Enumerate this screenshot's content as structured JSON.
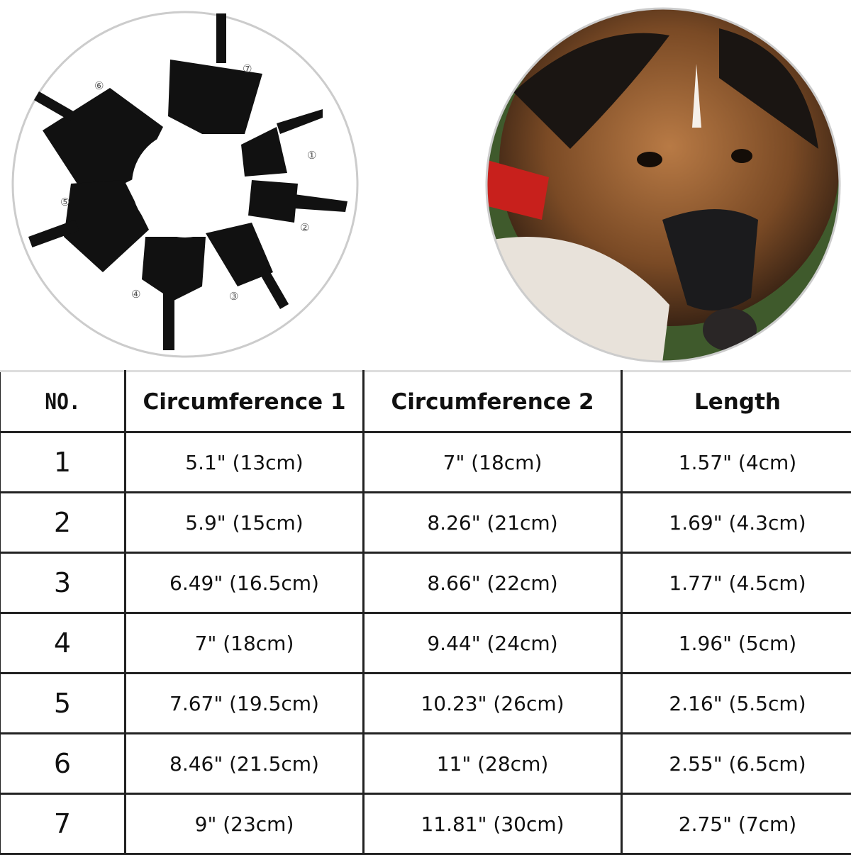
{
  "left_image": {
    "size_labels": [
      "①",
      "②",
      "③",
      "④",
      "⑤",
      "⑥",
      "⑦"
    ]
  },
  "table": {
    "headers": [
      "NO.",
      "Circumference 1",
      "Circumference 2",
      "Length"
    ],
    "rows": [
      [
        "1",
        "5.1\" (13cm)",
        "7\" (18cm)",
        "1.57\" (4cm)"
      ],
      [
        "2",
        "5.9\" (15cm)",
        "8.26\" (21cm)",
        "1.69\" (4.3cm)"
      ],
      [
        "3",
        "6.49\" (16.5cm)",
        "8.66\" (22cm)",
        "1.77\" (4.5cm)"
      ],
      [
        "4",
        "7\" (18cm)",
        "9.44\" (24cm)",
        "1.96\" (5cm)"
      ],
      [
        "5",
        "7.67\" (19.5cm)",
        "10.23\" (26cm)",
        "2.16\" (5.5cm)"
      ],
      [
        "6",
        "8.46\" (21.5cm)",
        "11\" (28cm)",
        "2.55\" (6.5cm)"
      ],
      [
        "7",
        "9\" (23cm)",
        "11.81\" (30cm)",
        "2.75\" (7cm)"
      ]
    ]
  }
}
